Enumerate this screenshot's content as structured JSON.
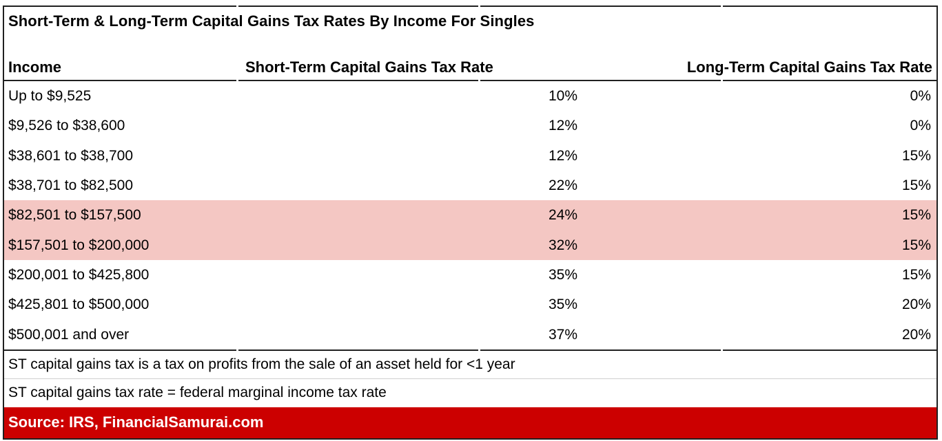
{
  "title": "Short-Term & Long-Term Capital Gains Tax Rates By Income For Singles",
  "headers": {
    "income": "Income",
    "st": "Short-Term Capital Gains Tax Rate",
    "lt": "Long-Term Capital Gains Tax Rate"
  },
  "rows": [
    {
      "income": "Up to $9,525",
      "st": "10%",
      "lt": "0%",
      "highlighted": false
    },
    {
      "income": "$9,526 to $38,600",
      "st": "12%",
      "lt": "0%",
      "highlighted": false
    },
    {
      "income": "$38,601 to $38,700",
      "st": "12%",
      "lt": "15%",
      "highlighted": false
    },
    {
      "income": "$38,701 to $82,500",
      "st": "22%",
      "lt": "15%",
      "highlighted": false
    },
    {
      "income": "$82,501 to $157,500",
      "st": "24%",
      "lt": "15%",
      "highlighted": true
    },
    {
      "income": "$157,501 to $200,000",
      "st": "32%",
      "lt": "15%",
      "highlighted": true
    },
    {
      "income": "$200,001 to $425,800",
      "st": "35%",
      "lt": "15%",
      "highlighted": false
    },
    {
      "income": "$425,801 to $500,000",
      "st": "35%",
      "lt": "20%",
      "highlighted": false
    },
    {
      "income": "$500,001 and over",
      "st": "37%",
      "lt": "20%",
      "highlighted": false
    }
  ],
  "notes": [
    "ST capital gains tax is a tax on profits from the sale of an asset held for <1 year",
    "ST capital gains tax rate = federal marginal income tax rate"
  ],
  "source": "Source: IRS, FinancialSamurai.com",
  "colors": {
    "highlight": "#f4c7c3",
    "source_bar": "#cc0000",
    "border": "#202020"
  },
  "chart_data": {
    "type": "table",
    "title": "Short-Term & Long-Term Capital Gains Tax Rates By Income For Singles",
    "columns": [
      "Income",
      "Short-Term Capital Gains Tax Rate",
      "Long-Term Capital Gains Tax Rate"
    ],
    "rows": [
      [
        "Up to $9,525",
        "10%",
        "0%"
      ],
      [
        "$9,526 to $38,600",
        "12%",
        "0%"
      ],
      [
        "$38,601 to $38,700",
        "12%",
        "15%"
      ],
      [
        "$38,701 to $82,500",
        "22%",
        "15%"
      ],
      [
        "$82,501 to $157,500",
        "24%",
        "15%"
      ],
      [
        "$157,501 to $200,000",
        "32%",
        "15%"
      ],
      [
        "$200,001 to $425,800",
        "35%",
        "15%"
      ],
      [
        "$425,801 to $500,000",
        "35%",
        "20%"
      ],
      [
        "$500,001 and over",
        "37%",
        "20%"
      ]
    ],
    "highlighted_rows": [
      4,
      5
    ],
    "footnotes": [
      "ST capital gains tax is a tax on profits from the sale of an asset held for <1 year",
      "ST capital gains tax rate = federal marginal income tax rate"
    ],
    "source": "Source: IRS, FinancialSamurai.com"
  }
}
